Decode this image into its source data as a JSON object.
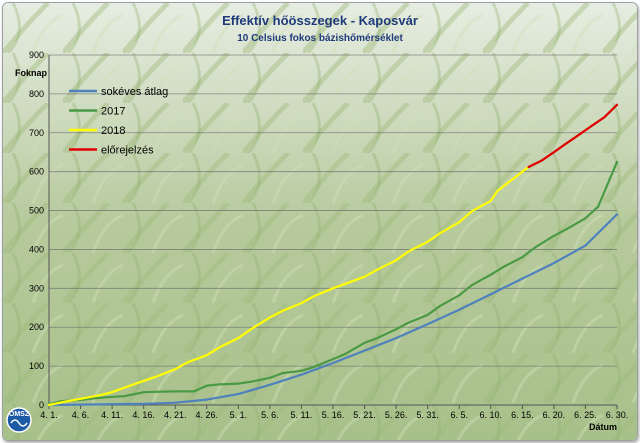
{
  "chart_data": {
    "type": "line",
    "title": "Effektív hőösszegek - Kaposvár",
    "subtitle": "10 Celsius fokos bázishőmérséklet",
    "ylabel": "Foknap",
    "xlabel": "Dátum",
    "ylim": [
      0,
      900
    ],
    "yticks": [
      0,
      100,
      200,
      300,
      400,
      500,
      600,
      700,
      800,
      900
    ],
    "xlim": [
      1,
      91
    ],
    "x_ticks": [
      {
        "x": 1,
        "label": "4. 1."
      },
      {
        "x": 6,
        "label": "4. 6."
      },
      {
        "x": 11,
        "label": "4. 11."
      },
      {
        "x": 16,
        "label": "4. 16."
      },
      {
        "x": 21,
        "label": "4. 21."
      },
      {
        "x": 26,
        "label": "4. 26."
      },
      {
        "x": 31,
        "label": "5. 1."
      },
      {
        "x": 36,
        "label": "5. 6."
      },
      {
        "x": 41,
        "label": "5. 11."
      },
      {
        "x": 46,
        "label": "5. 16."
      },
      {
        "x": 51,
        "label": "5. 21."
      },
      {
        "x": 56,
        "label": "5. 26."
      },
      {
        "x": 61,
        "label": "5. 31."
      },
      {
        "x": 66,
        "label": "6. 5."
      },
      {
        "x": 71,
        "label": "6. 10."
      },
      {
        "x": 76,
        "label": "6. 15."
      },
      {
        "x": 81,
        "label": "6. 20."
      },
      {
        "x": 86,
        "label": "6. 25."
      },
      {
        "x": 91,
        "label": "6. 30."
      }
    ],
    "grid": true,
    "legend_position": "top-left",
    "series": [
      {
        "name": "sokéves átlag",
        "color": "#4f81bd",
        "points": [
          [
            1,
            0
          ],
          [
            6,
            1
          ],
          [
            11,
            2
          ],
          [
            16,
            3
          ],
          [
            21,
            6
          ],
          [
            26,
            14
          ],
          [
            31,
            28
          ],
          [
            36,
            52
          ],
          [
            41,
            78
          ],
          [
            46,
            108
          ],
          [
            51,
            140
          ],
          [
            56,
            172
          ],
          [
            61,
            208
          ],
          [
            66,
            245
          ],
          [
            71,
            285
          ],
          [
            76,
            325
          ],
          [
            81,
            365
          ],
          [
            86,
            410
          ],
          [
            91,
            490
          ]
        ]
      },
      {
        "name": "2017",
        "color": "#4a9a45",
        "points": [
          [
            1,
            2
          ],
          [
            3,
            10
          ],
          [
            6,
            13
          ],
          [
            8,
            17
          ],
          [
            11,
            21
          ],
          [
            13,
            23
          ],
          [
            16,
            33
          ],
          [
            18,
            34
          ],
          [
            21,
            35
          ],
          [
            24,
            35
          ],
          [
            26,
            50
          ],
          [
            28,
            53
          ],
          [
            31,
            55
          ],
          [
            33,
            60
          ],
          [
            36,
            70
          ],
          [
            38,
            82
          ],
          [
            41,
            88
          ],
          [
            43,
            98
          ],
          [
            46,
            118
          ],
          [
            48,
            132
          ],
          [
            51,
            160
          ],
          [
            53,
            172
          ],
          [
            56,
            195
          ],
          [
            58,
            212
          ],
          [
            61,
            232
          ],
          [
            63,
            255
          ],
          [
            66,
            282
          ],
          [
            68,
            308
          ],
          [
            71,
            335
          ],
          [
            73,
            355
          ],
          [
            76,
            380
          ],
          [
            78,
            405
          ],
          [
            81,
            435
          ],
          [
            83,
            452
          ],
          [
            86,
            480
          ],
          [
            88,
            510
          ],
          [
            91,
            625
          ]
        ]
      },
      {
        "name": "2018",
        "color": "#ffff00",
        "points": [
          [
            1,
            0
          ],
          [
            4,
            10
          ],
          [
            6,
            16
          ],
          [
            9,
            25
          ],
          [
            11,
            33
          ],
          [
            13,
            45
          ],
          [
            16,
            62
          ],
          [
            18,
            73
          ],
          [
            21,
            92
          ],
          [
            23,
            110
          ],
          [
            26,
            128
          ],
          [
            28,
            148
          ],
          [
            31,
            172
          ],
          [
            33,
            195
          ],
          [
            36,
            225
          ],
          [
            38,
            242
          ],
          [
            41,
            262
          ],
          [
            43,
            280
          ],
          [
            46,
            300
          ],
          [
            48,
            312
          ],
          [
            51,
            330
          ],
          [
            53,
            348
          ],
          [
            56,
            372
          ],
          [
            58,
            395
          ],
          [
            61,
            420
          ],
          [
            63,
            442
          ],
          [
            66,
            470
          ],
          [
            68,
            498
          ],
          [
            71,
            525
          ],
          [
            72,
            550
          ],
          [
            74,
            575
          ],
          [
            76,
            600
          ],
          [
            77,
            612
          ]
        ]
      },
      {
        "name": "előrejelzés",
        "color": "#e00000",
        "points": [
          [
            77,
            612
          ],
          [
            79,
            628
          ],
          [
            81,
            650
          ],
          [
            83,
            673
          ],
          [
            85,
            695
          ],
          [
            87,
            718
          ],
          [
            89,
            740
          ],
          [
            91,
            772
          ]
        ]
      }
    ]
  },
  "logo": {
    "text": "OMSZ"
  }
}
